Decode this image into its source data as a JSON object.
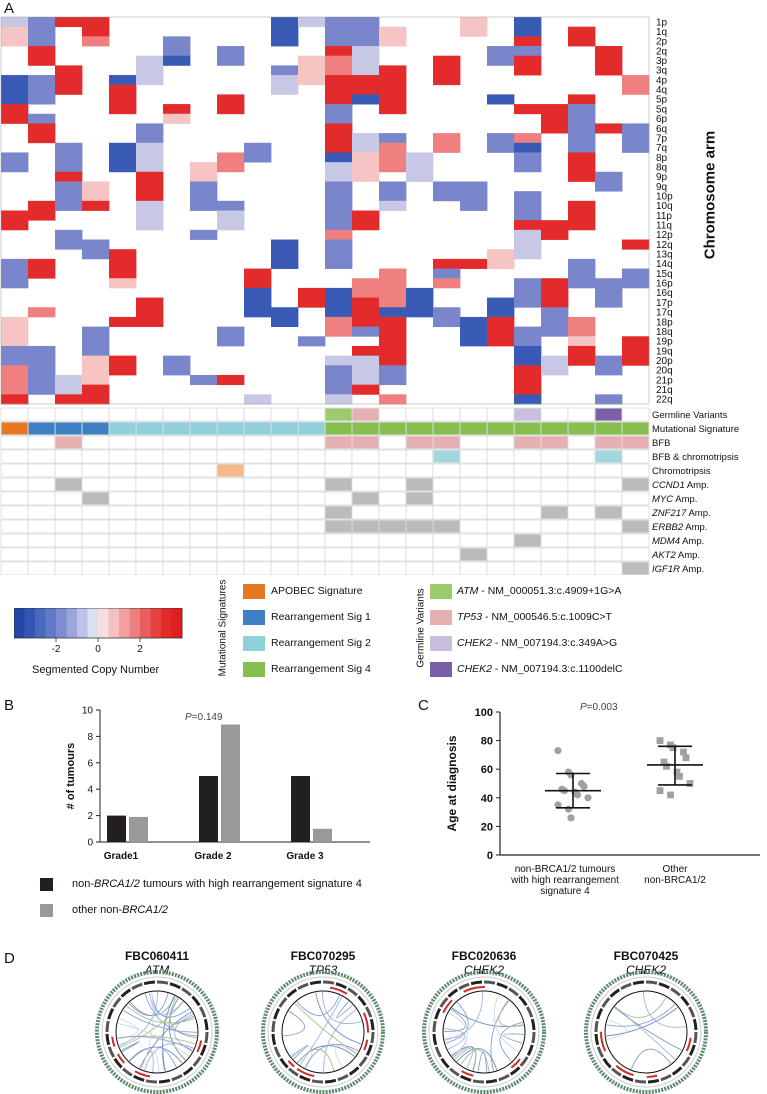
{
  "panels": {
    "a": "A",
    "b": "B",
    "c": "C",
    "d": "D"
  },
  "heatmap": {
    "y_axis_title": "Chromosome arm",
    "arms": [
      "1p",
      "1q",
      "2p",
      "2q",
      "3p",
      "3q",
      "4p",
      "4q",
      "5p",
      "5q",
      "6p",
      "6q",
      "7p",
      "7q",
      "8p",
      "8q",
      "9p",
      "9q",
      "10p",
      "10q",
      "11p",
      "11q",
      "12p",
      "12q",
      "13q",
      "14q",
      "15q",
      "16p",
      "16q",
      "17p",
      "17q",
      "18p",
      "18q",
      "19p",
      "19q",
      "20p",
      "20q",
      "21p",
      "21q",
      "22q"
    ],
    "n_samples": 24,
    "colors": {
      "strong_gain": "#e42b2b",
      "gain": "#f08080",
      "weak_gain": "#f7c4c4",
      "weak_loss": "#c7c7e6",
      "loss": "#7a86cc",
      "strong_loss": "#3a5bb5",
      "neutral": "#ffffff"
    }
  },
  "tracks": {
    "labels": [
      {
        "text": "Germline Variants",
        "italic_part": ""
      },
      {
        "text": "Mutational Signature",
        "italic_part": ""
      },
      {
        "text": "BFB",
        "italic_part": ""
      },
      {
        "text": "BFB & chromotripsis",
        "italic_part": ""
      },
      {
        "text": "Chromotripsis",
        "italic_part": ""
      },
      {
        "text": " Amp.",
        "italic_part": "CCND1"
      },
      {
        "text": " Amp.",
        "italic_part": "MYC"
      },
      {
        "text": " Amp.",
        "italic_part": "ZNF217"
      },
      {
        "text": " Amp.",
        "italic_part": "ERBB2"
      },
      {
        "text": " Amp.",
        "italic_part": "MDM4"
      },
      {
        "text": " Amp.",
        "italic_part": "AKT2"
      },
      {
        "text": " Amp.",
        "italic_part": "IGF1R"
      }
    ],
    "colors": {
      "apobec": "#e87722",
      "rs1": "#3f7fc4",
      "rs2": "#8fd1db",
      "rs4": "#86bf4e",
      "atm": "#9bcb6c",
      "tp53": "#e6b0b3",
      "chek2_349": "#c9bede",
      "chek2_1100": "#7b5ea8",
      "bfb": "#e6b0b3",
      "bfb_chromo": "#9fd8df",
      "chromo": "#f4b88a",
      "amp": "#bbbbbb"
    }
  },
  "colorbar": {
    "title": "Segmented Copy Number",
    "ticks": [
      "-2",
      "0",
      "2"
    ]
  },
  "legend": {
    "mut_title": "Mutational Signatures",
    "mut_items": [
      "APOBEC Signature",
      "Rearrangement Sig 1",
      "Rearrangement Sig 2",
      "Rearrangement Sig 4"
    ],
    "germ_title": "Germline Variants",
    "germ_items": [
      {
        "gene": "ATM",
        "rest": " - NM_000051.3:c.4909+1G>A"
      },
      {
        "gene": "TP53",
        "rest": " - NM_000546.5:c.1009C>T"
      },
      {
        "gene": "CHEK2",
        "rest": " - NM_007194.3:c.349A>G"
      },
      {
        "gene": "CHEK2",
        "rest": " - NM_007194.3:c.1100delC"
      }
    ]
  },
  "panel_b": {
    "ylabel": "# of tumours",
    "pvalue": "0.149",
    "p_prefix": "P",
    "legend1_pre": "non-",
    "legend1_ital": "BRCA1/2",
    "legend1_post": " tumours with high  rearrangement signature 4",
    "legend2_pre": "other non-",
    "legend2_ital": "BRCA1/2"
  },
  "panel_c": {
    "ylabel": "Age at diagnosis",
    "pvalue": "0.003",
    "p_prefix": "P",
    "cat1": [
      "non-BRCA1/2 tumours",
      "with high rearrangement",
      "signature 4"
    ],
    "cat2": [
      "Other",
      "non-BRCA1/2"
    ]
  },
  "chart_data": [
    {
      "type": "bar",
      "title": "",
      "categories": [
        "Grade1",
        "Grade 2",
        "Grade 3"
      ],
      "series": [
        {
          "name": "non-BRCA1/2 tumours with high rearrangement signature 4",
          "values": [
            2,
            5,
            5
          ],
          "color": "#231f20"
        },
        {
          "name": "other non-BRCA1/2",
          "values": [
            1.9,
            8.9,
            1
          ],
          "color": "#999999"
        }
      ],
      "xlabel": "",
      "ylabel": "# of tumours",
      "ylim": [
        0,
        10
      ],
      "yticks": [
        "0",
        "2",
        "4",
        "6",
        "8",
        "10"
      ]
    },
    {
      "type": "scatter",
      "title": "",
      "categories": [
        "non-BRCA1/2 tumours with high rearrangement signature 4",
        "Other non-BRCA1/2"
      ],
      "series": [
        {
          "name": "non-BRCA1/2 tumours with high rearrangement signature 4",
          "values": [
            73,
            58,
            56,
            50,
            48,
            46,
            45,
            44,
            42,
            40,
            35,
            32,
            26
          ],
          "mean": 45,
          "sd_low": 33,
          "sd_high": 57,
          "color": "#a0a0a0",
          "marker": "circle"
        },
        {
          "name": "Other non-BRCA1/2",
          "values": [
            80,
            77,
            75,
            72,
            68,
            65,
            62,
            58,
            55,
            50,
            45,
            42
          ],
          "mean": 63,
          "sd_low": 49,
          "sd_high": 76,
          "color": "#a0a0a0",
          "marker": "square"
        }
      ],
      "xlabel": "",
      "ylabel": "Age at diagnosis",
      "ylim": [
        0,
        100
      ],
      "yticks": [
        "0",
        "20",
        "40",
        "60",
        "80",
        "100"
      ]
    }
  ],
  "circos": [
    {
      "id": "FBC060411",
      "gene": "ATM"
    },
    {
      "id": "FBC070295",
      "gene": "TP53"
    },
    {
      "id": "FBC020636",
      "gene": "CHEK2"
    },
    {
      "id": "FBC070425",
      "gene": "CHEK2"
    }
  ]
}
